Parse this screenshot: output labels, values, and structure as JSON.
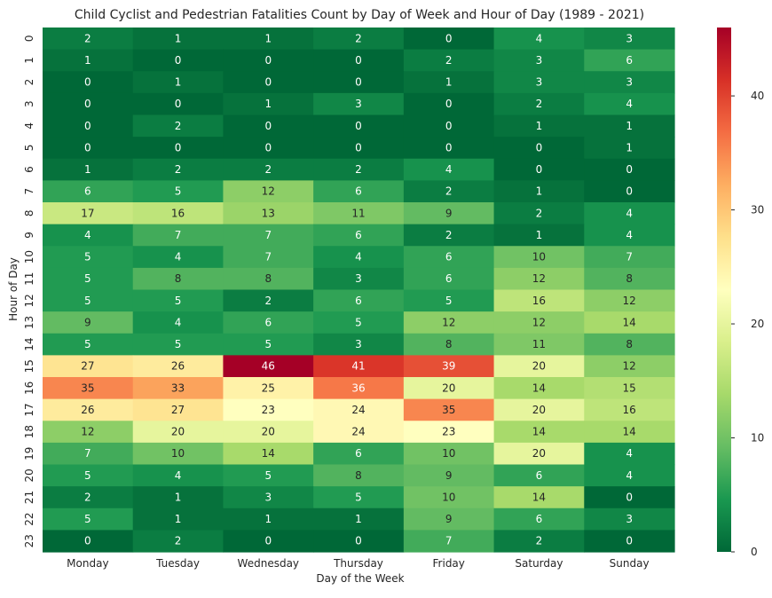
{
  "chart_data": {
    "type": "heatmap",
    "title": "Child Cyclist and Pedestrian Fatalities Count by Day of Week and Hour of Day (1989 - 2021)",
    "xlabel": "Day of the Week",
    "ylabel": "Hour of Day",
    "x_categories": [
      "Monday",
      "Tuesday",
      "Wednesday",
      "Thursday",
      "Friday",
      "Saturday",
      "Sunday"
    ],
    "y_categories": [
      "0",
      "1",
      "2",
      "3",
      "4",
      "5",
      "6",
      "7",
      "8",
      "9",
      "10",
      "11",
      "12",
      "13",
      "14",
      "15",
      "16",
      "17",
      "18",
      "19",
      "20",
      "21",
      "22",
      "23"
    ],
    "values": [
      [
        2,
        1,
        1,
        2,
        0,
        4,
        3
      ],
      [
        1,
        0,
        0,
        0,
        2,
        3,
        6
      ],
      [
        0,
        1,
        0,
        0,
        1,
        3,
        3
      ],
      [
        0,
        0,
        1,
        3,
        0,
        2,
        4
      ],
      [
        0,
        2,
        0,
        0,
        0,
        1,
        1
      ],
      [
        0,
        0,
        0,
        0,
        0,
        0,
        1
      ],
      [
        1,
        2,
        2,
        2,
        4,
        0,
        0
      ],
      [
        6,
        5,
        12,
        6,
        2,
        1,
        0
      ],
      [
        17,
        16,
        13,
        11,
        9,
        2,
        4
      ],
      [
        4,
        7,
        7,
        6,
        2,
        1,
        4
      ],
      [
        5,
        4,
        7,
        4,
        6,
        10,
        7
      ],
      [
        5,
        8,
        8,
        3,
        6,
        12,
        8
      ],
      [
        5,
        5,
        2,
        6,
        5,
        16,
        12
      ],
      [
        9,
        4,
        6,
        5,
        12,
        12,
        14
      ],
      [
        5,
        5,
        5,
        3,
        8,
        11,
        8
      ],
      [
        27,
        26,
        46,
        41,
        39,
        20,
        12
      ],
      [
        35,
        33,
        25,
        36,
        20,
        14,
        15
      ],
      [
        26,
        27,
        23,
        24,
        35,
        20,
        16
      ],
      [
        12,
        20,
        20,
        24,
        23,
        14,
        14
      ],
      [
        7,
        10,
        14,
        6,
        10,
        20,
        4
      ],
      [
        5,
        4,
        5,
        8,
        9,
        6,
        4
      ],
      [
        2,
        1,
        3,
        5,
        10,
        14,
        0
      ],
      [
        5,
        1,
        1,
        1,
        9,
        6,
        3
      ],
      [
        0,
        2,
        0,
        0,
        7,
        2,
        0
      ]
    ],
    "colormap": "RdYlGn reversed",
    "vmin": 0,
    "vmax": 46,
    "colorbar_ticks": [
      0,
      10,
      20,
      30,
      40
    ],
    "legend_placement": "right"
  }
}
